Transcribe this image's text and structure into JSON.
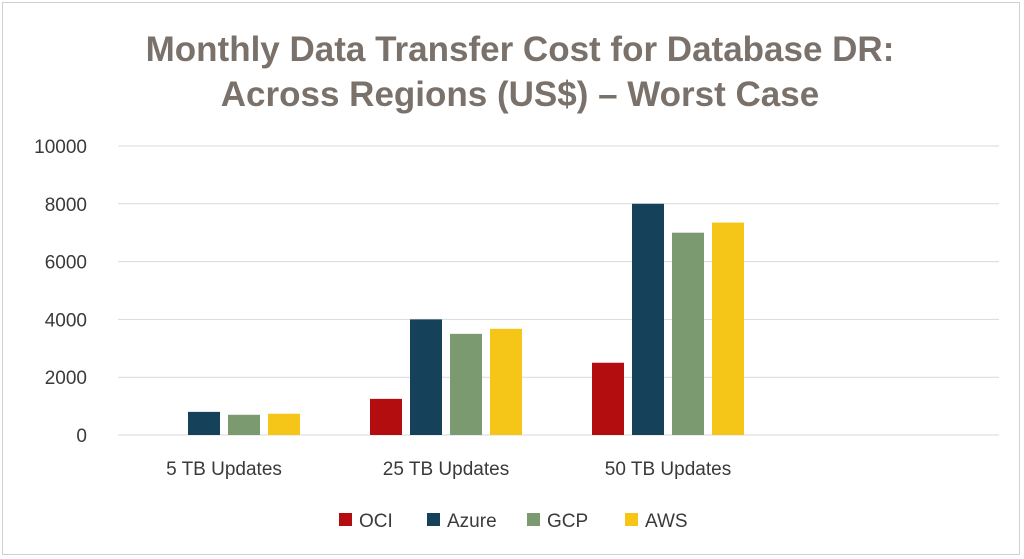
{
  "chart_data": {
    "type": "bar",
    "title": "Monthly Data Transfer Cost for Database DR:",
    "subtitle": "Across Regions (US$) – Worst Case",
    "xlabel": "",
    "ylabel": "",
    "ylim": [
      0,
      10000
    ],
    "yticks": [
      0,
      2000,
      4000,
      6000,
      8000,
      10000
    ],
    "grid": true,
    "legend_position": "bottom",
    "categories": [
      "5 TB Updates",
      "25 TB Updates",
      "50 TB Updates"
    ],
    "series": [
      {
        "name": "OCI",
        "color": "#b30d10",
        "values": [
          0,
          1250,
          2500
        ]
      },
      {
        "name": "Azure",
        "color": "#15415a",
        "values": [
          800,
          4000,
          8000
        ]
      },
      {
        "name": "GCP",
        "color": "#7c9a6f",
        "values": [
          700,
          3500,
          7000
        ]
      },
      {
        "name": "AWS",
        "color": "#f5c518",
        "values": [
          735,
          3675,
          7350
        ]
      }
    ]
  }
}
